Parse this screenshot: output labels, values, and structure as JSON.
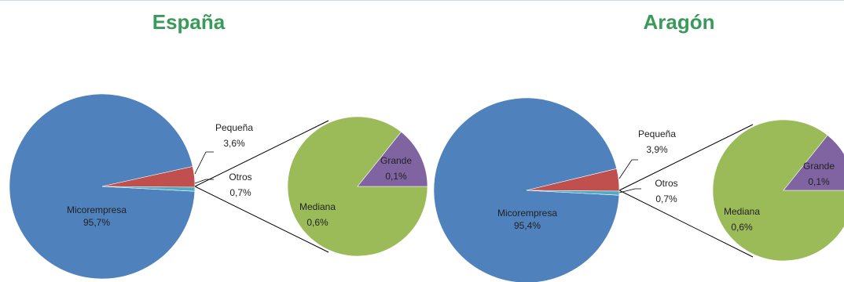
{
  "colors": {
    "title": "#3a9a5a",
    "micro": "#4f81bd",
    "pequena": "#c0504d",
    "otros": "#4bacc6",
    "mediana": "#9bbb59",
    "grande": "#8064a2"
  },
  "chart_data": [
    {
      "type": "pie",
      "title": "España",
      "slices": [
        {
          "name": "Micorempresa",
          "label": "95,7%",
          "value": 95.7
        },
        {
          "name": "Pequeña",
          "label": "3,6%",
          "value": 3.6
        },
        {
          "name": "Otros",
          "label": "0,7%",
          "value": 0.7
        }
      ],
      "breakdown_of": "Otros",
      "breakdown": [
        {
          "name": "Mediana",
          "label": "0,6%",
          "value": 0.6
        },
        {
          "name": "Grande",
          "label": "0,1%",
          "value": 0.1
        }
      ]
    },
    {
      "type": "pie",
      "title": "Aragón",
      "slices": [
        {
          "name": "Micorempresa",
          "label": "95,4%",
          "value": 95.4
        },
        {
          "name": "Pequeña",
          "label": "3,9%",
          "value": 3.9
        },
        {
          "name": "Otros",
          "label": "0,7%",
          "value": 0.7
        }
      ],
      "breakdown_of": "Otros",
      "breakdown": [
        {
          "name": "Mediana",
          "label": "0,6%",
          "value": 0.6
        },
        {
          "name": "Grande",
          "label": "0,1%",
          "value": 0.1
        }
      ]
    }
  ]
}
